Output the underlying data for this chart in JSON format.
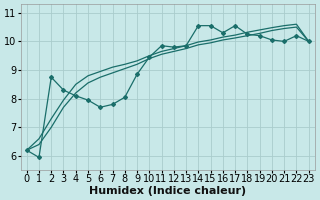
{
  "xlabel": "Humidex (Indice chaleur)",
  "background_color": "#c8e8e8",
  "grid_color": "#aacccc",
  "line_color": "#1a6e6a",
  "xlim": [
    -0.5,
    23.5
  ],
  "ylim": [
    5.5,
    11.3
  ],
  "xticks": [
    0,
    1,
    2,
    3,
    4,
    5,
    6,
    7,
    8,
    9,
    10,
    11,
    12,
    13,
    14,
    15,
    16,
    17,
    18,
    19,
    20,
    21,
    22,
    23
  ],
  "yticks": [
    6,
    7,
    8,
    9,
    10,
    11
  ],
  "line_marker_x": [
    2,
    3,
    4,
    5,
    6,
    7,
    8,
    9,
    10,
    11,
    12,
    13,
    14,
    15,
    16,
    17,
    18,
    19,
    20,
    21,
    22,
    23
  ],
  "line_marker_y": [
    8.75,
    8.3,
    8.1,
    7.95,
    7.7,
    7.8,
    8.05,
    8.85,
    9.45,
    9.85,
    9.8,
    9.85,
    10.55,
    10.55,
    10.3,
    10.55,
    10.25,
    10.2,
    10.05,
    10.0,
    10.2,
    10.0
  ],
  "line_low_x": [
    0,
    1,
    2,
    3,
    4,
    5,
    6,
    7,
    8,
    9,
    10,
    11,
    12,
    13,
    14,
    15,
    16,
    17,
    18,
    19,
    20,
    21,
    22,
    23
  ],
  "line_low_y": [
    6.2,
    5.95,
    8.75,
    8.3,
    8.1,
    7.95,
    7.7,
    7.8,
    8.05,
    8.85,
    9.45,
    9.85,
    9.8,
    9.85,
    10.55,
    10.55,
    10.3,
    10.55,
    10.25,
    10.2,
    10.05,
    10.0,
    10.2,
    10.0
  ],
  "line_upper1_x": [
    0,
    1,
    2,
    3,
    4,
    5,
    6,
    7,
    8,
    9,
    10,
    11,
    12,
    13,
    14,
    15,
    16,
    17,
    18,
    19,
    20,
    21,
    22,
    23
  ],
  "line_upper1_y": [
    6.2,
    6.4,
    7.0,
    7.7,
    8.2,
    8.55,
    8.75,
    8.9,
    9.05,
    9.2,
    9.4,
    9.55,
    9.65,
    9.75,
    9.88,
    9.95,
    10.05,
    10.12,
    10.2,
    10.28,
    10.38,
    10.45,
    10.5,
    10.0
  ],
  "line_upper2_x": [
    0,
    1,
    2,
    3,
    4,
    5,
    6,
    7,
    8,
    9,
    10,
    11,
    12,
    13,
    14,
    15,
    16,
    17,
    18,
    19,
    20,
    21,
    22,
    23
  ],
  "line_upper2_y": [
    6.2,
    6.6,
    7.3,
    7.95,
    8.5,
    8.8,
    8.95,
    9.1,
    9.2,
    9.32,
    9.5,
    9.65,
    9.75,
    9.85,
    9.98,
    10.05,
    10.15,
    10.22,
    10.32,
    10.4,
    10.48,
    10.55,
    10.6,
    10.0
  ],
  "fontsize_xlabel": 8,
  "fontsize_ticks": 7,
  "marker": "D",
  "marker_size": 2.0,
  "linewidth": 0.9
}
